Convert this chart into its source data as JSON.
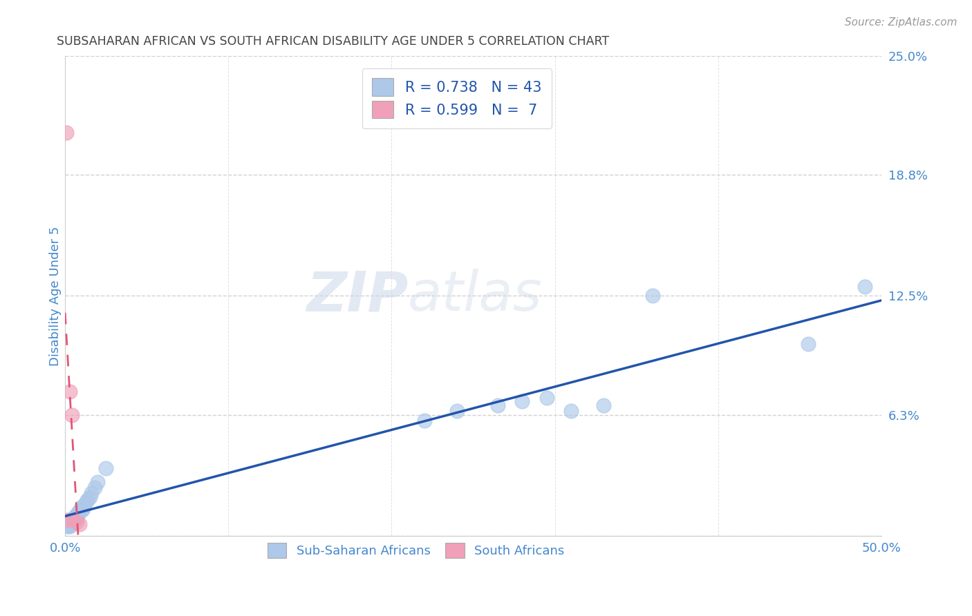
{
  "title": "SUBSAHARAN AFRICAN VS SOUTH AFRICAN DISABILITY AGE UNDER 5 CORRELATION CHART",
  "source": "Source: ZipAtlas.com",
  "ylabel": "Disability Age Under 5",
  "xlim": [
    0.0,
    0.5
  ],
  "ylim": [
    0.0,
    0.25
  ],
  "yticks": [
    0.0,
    0.063,
    0.125,
    0.188,
    0.25
  ],
  "ytick_labels": [
    "",
    "6.3%",
    "12.5%",
    "18.8%",
    "25.0%"
  ],
  "xticks": [
    0.0,
    0.1,
    0.2,
    0.3,
    0.4,
    0.5
  ],
  "xtick_labels": [
    "0.0%",
    "",
    "",
    "",
    "",
    "50.0%"
  ],
  "blue_R": 0.738,
  "blue_N": 43,
  "pink_R": 0.599,
  "pink_N": 7,
  "blue_color": "#adc8e8",
  "pink_color": "#f0a0b8",
  "blue_line_color": "#2255aa",
  "pink_line_color": "#e05575",
  "legend_blue_label": "Sub-Saharan Africans",
  "legend_pink_label": "South Africans",
  "watermark_zip": "ZIP",
  "watermark_atlas": "atlas",
  "background_color": "#ffffff",
  "grid_color": "#cccccc",
  "title_color": "#444444",
  "tick_color": "#4488cc",
  "blue_scatter_x": [
    0.001,
    0.001,
    0.002,
    0.002,
    0.002,
    0.003,
    0.003,
    0.003,
    0.004,
    0.004,
    0.004,
    0.005,
    0.005,
    0.005,
    0.006,
    0.006,
    0.007,
    0.007,
    0.007,
    0.008,
    0.008,
    0.009,
    0.01,
    0.01,
    0.011,
    0.012,
    0.013,
    0.014,
    0.015,
    0.016,
    0.018,
    0.02,
    0.025,
    0.22,
    0.24,
    0.265,
    0.28,
    0.295,
    0.31,
    0.33,
    0.36,
    0.455,
    0.49
  ],
  "blue_scatter_y": [
    0.005,
    0.006,
    0.005,
    0.007,
    0.006,
    0.005,
    0.006,
    0.008,
    0.006,
    0.007,
    0.008,
    0.007,
    0.009,
    0.008,
    0.008,
    0.01,
    0.009,
    0.01,
    0.011,
    0.011,
    0.012,
    0.013,
    0.013,
    0.015,
    0.014,
    0.016,
    0.018,
    0.019,
    0.02,
    0.022,
    0.025,
    0.028,
    0.035,
    0.06,
    0.065,
    0.068,
    0.07,
    0.072,
    0.065,
    0.068,
    0.125,
    0.1,
    0.13
  ],
  "pink_scatter_x": [
    0.001,
    0.001,
    0.003,
    0.004,
    0.005,
    0.007,
    0.009
  ],
  "pink_scatter_y": [
    0.21,
    0.008,
    0.075,
    0.063,
    0.008,
    0.007,
    0.006
  ]
}
